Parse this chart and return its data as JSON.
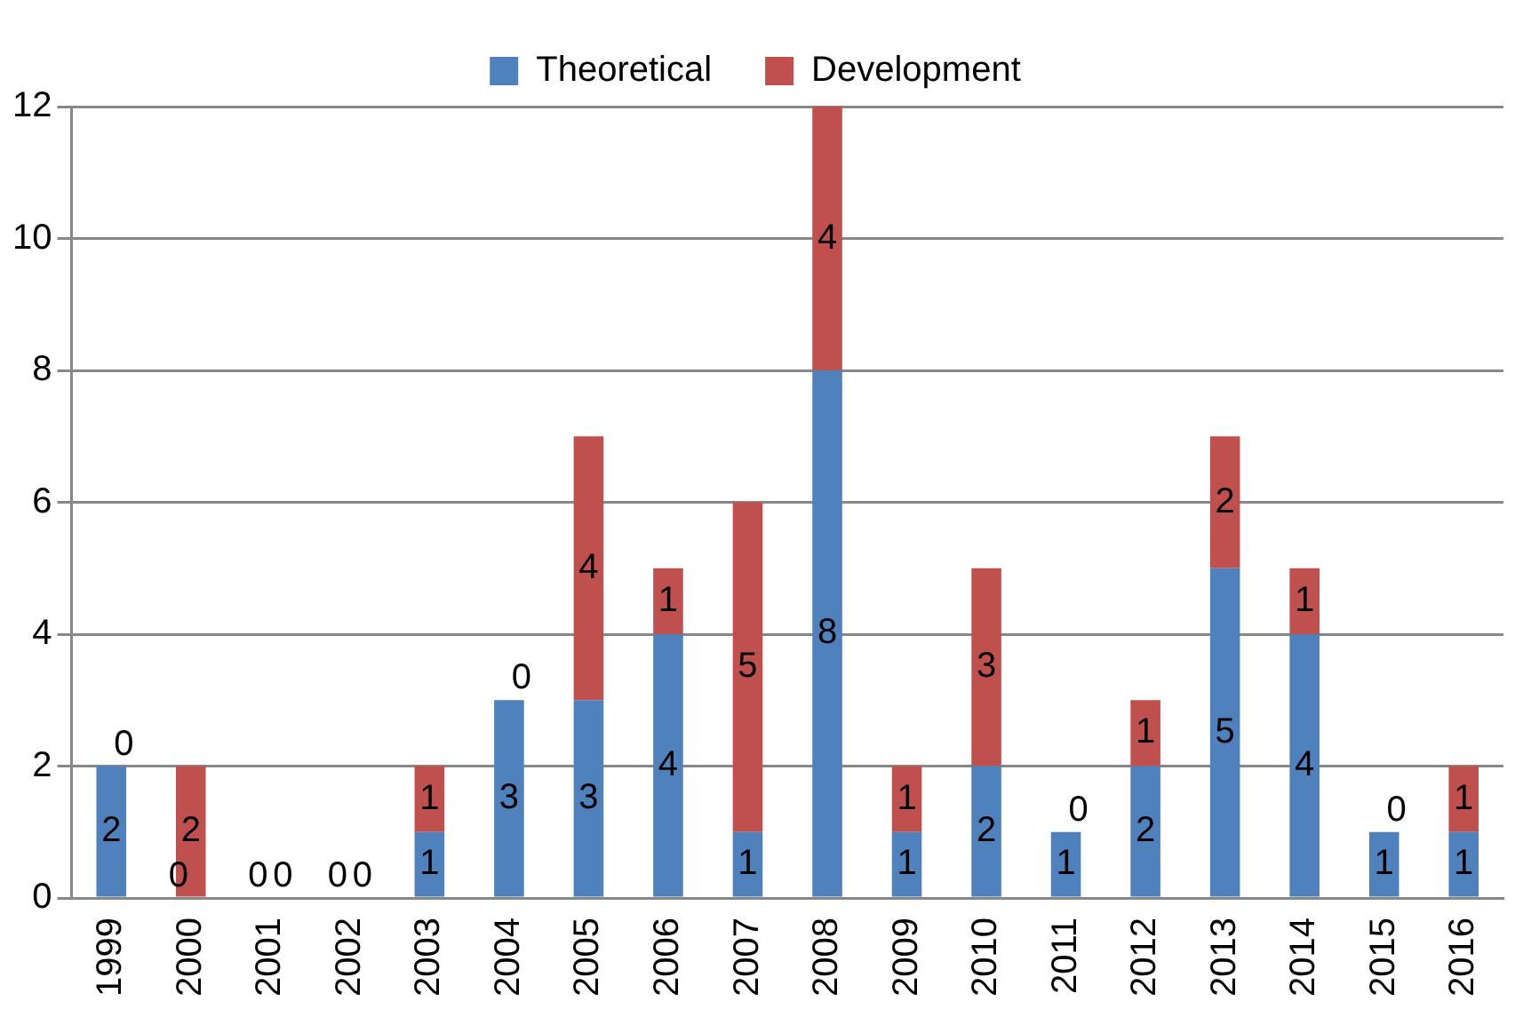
{
  "chart_data": {
    "type": "bar",
    "stacked": true,
    "categories": [
      "1999",
      "2000",
      "2001",
      "2002",
      "2003",
      "2004",
      "2005",
      "2006",
      "2007",
      "2008",
      "2009",
      "2010",
      "2011",
      "2012",
      "2013",
      "2014",
      "2015",
      "2016"
    ],
    "series": [
      {
        "name": "Theoretical",
        "color": "#4f81bd",
        "values": [
          2,
          0,
          0,
          0,
          1,
          3,
          3,
          4,
          1,
          8,
          1,
          2,
          1,
          2,
          5,
          4,
          1,
          1
        ]
      },
      {
        "name": "Development",
        "color": "#c0504d",
        "values": [
          0,
          2,
          0,
          0,
          1,
          0,
          4,
          1,
          5,
          4,
          1,
          3,
          0,
          1,
          2,
          1,
          0,
          1
        ]
      }
    ],
    "ylim": [
      0,
      12
    ],
    "yticks": [
      0,
      2,
      4,
      6,
      8,
      10,
      12
    ],
    "grid": "y",
    "legend": "top",
    "data_labels": true
  }
}
